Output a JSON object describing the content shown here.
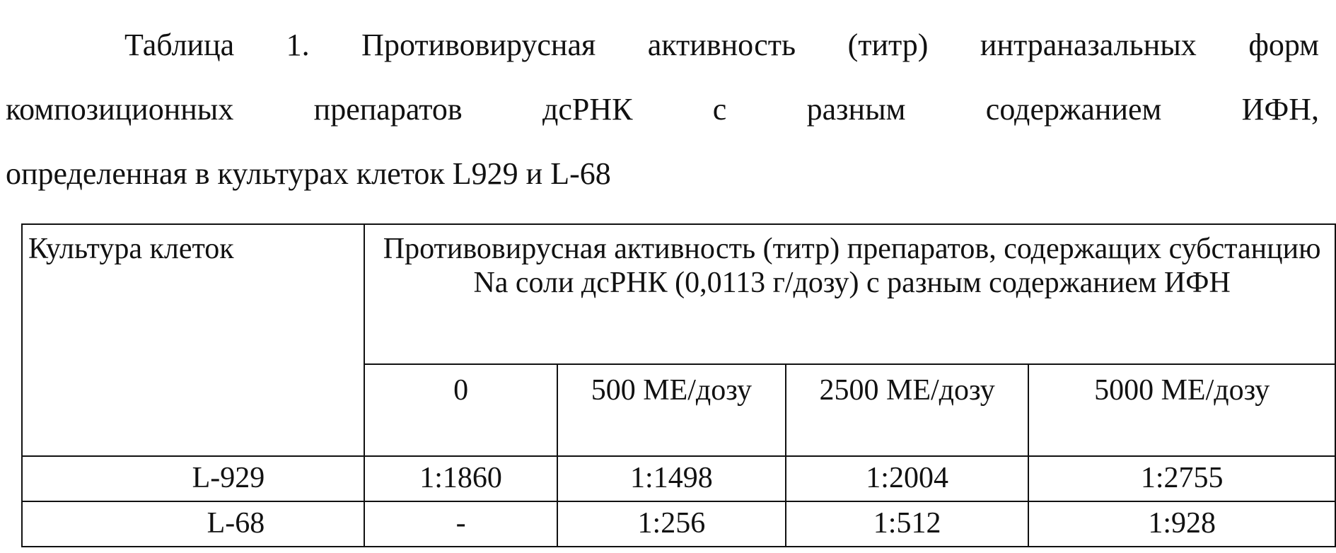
{
  "caption": {
    "line1": "Таблица 1. Противовирусная активность (титр) интраназальных форм",
    "line2": "композиционных препаратов дсРНК с разным содержанием ИФН,",
    "line3": "определенная в культурах клеток L929 и L-68"
  },
  "table": {
    "row_header": "Культура клеток",
    "group_header": "Противовирусная активность (титр) препаратов, содержащих субстанцию Na соли дсРНК (0,0113 г/дозу) с разным содержанием ИФН",
    "columns": [
      "0",
      "500 МЕ/дозу",
      "2500 МЕ/дозу",
      "5000 МЕ/дозу"
    ],
    "rows": [
      {
        "culture": "L-929",
        "values": [
          "1:1860",
          "1:1498",
          "1:2004",
          "1:2755"
        ]
      },
      {
        "culture": "L-68",
        "values": [
          "-",
          "1:256",
          "1:512",
          "1:928"
        ]
      }
    ]
  }
}
